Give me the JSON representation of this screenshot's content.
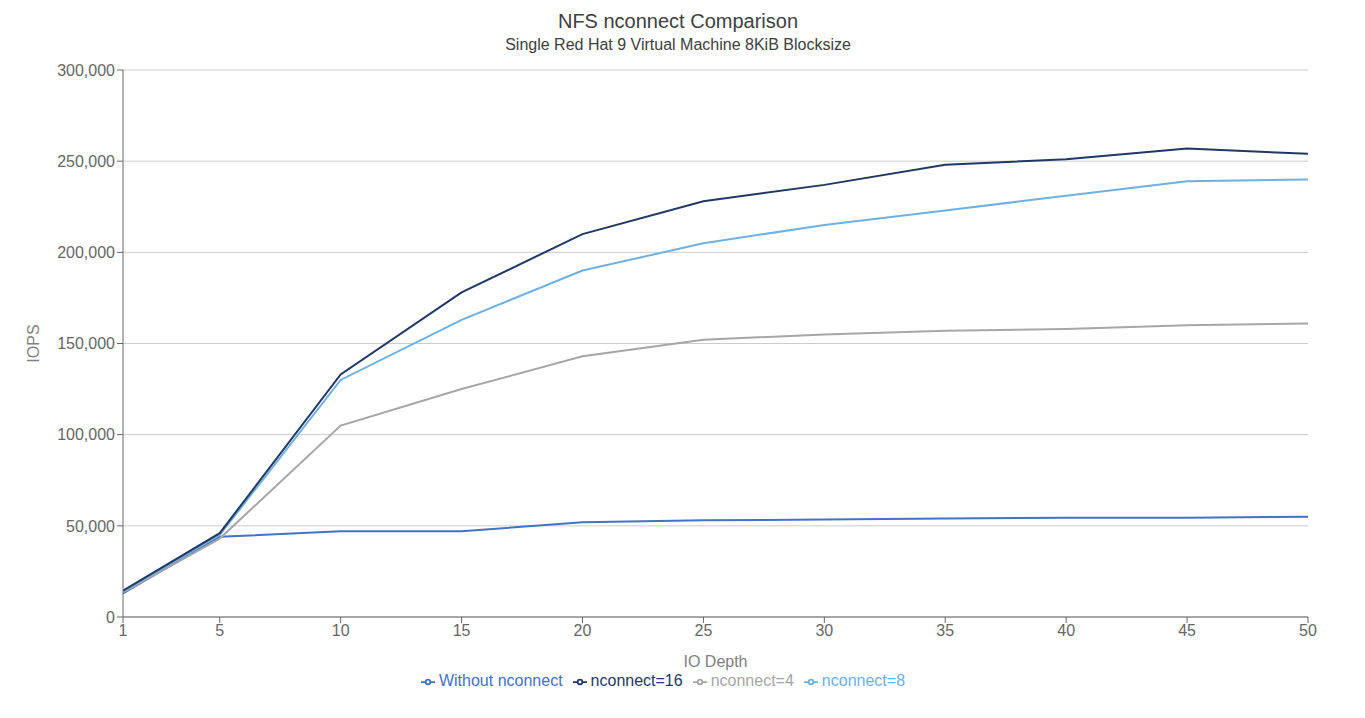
{
  "chart_data": {
    "type": "line",
    "title": "NFS nconnect Comparison",
    "subtitle": "Single Red Hat 9 Virtual Machine 8KiB Blocksize",
    "xlabel": "IO Depth",
    "ylabel": "IOPS",
    "x": [
      1,
      5,
      10,
      15,
      20,
      25,
      30,
      35,
      40,
      45,
      50
    ],
    "series": [
      {
        "name": "Without nconnect",
        "color": "#4472c4",
        "values": [
          13000,
          44000,
          47000,
          47000,
          52000,
          53000,
          53500,
          54000,
          54500,
          54500,
          55000
        ]
      },
      {
        "name": "nconnect=4",
        "color": "#a6a6a6",
        "values": [
          13500,
          43000,
          105000,
          125000,
          143000,
          152000,
          155000,
          157000,
          158000,
          160000,
          161000
        ]
      },
      {
        "name": "nconnect=8",
        "color": "#70b0e0",
        "values": [
          14000,
          45000,
          130000,
          163000,
          190000,
          205000,
          215000,
          223000,
          231000,
          239000,
          240000
        ]
      },
      {
        "name": "nconnect=16",
        "color": "#1f3864",
        "values": [
          14500,
          46000,
          133000,
          178000,
          210000,
          228000,
          237000,
          248000,
          251000,
          257000,
          254000
        ]
      }
    ],
    "xlim": [
      1,
      50
    ],
    "ylim": [
      0,
      300000
    ],
    "xticks": [
      1,
      5,
      10,
      15,
      20,
      25,
      30,
      35,
      40,
      45,
      50
    ],
    "yticks": [
      0,
      {
        "value": 50000,
        "label": "50,000"
      },
      {
        "value": 100000,
        "label": "100,000"
      },
      {
        "value": 150000,
        "label": "150,000"
      },
      {
        "value": 200000,
        "label": "200,000"
      },
      {
        "value": 250000,
        "label": "250,000"
      },
      {
        "value": 300000,
        "label": "300,000"
      }
    ],
    "grid": true,
    "legend": "bottom"
  }
}
